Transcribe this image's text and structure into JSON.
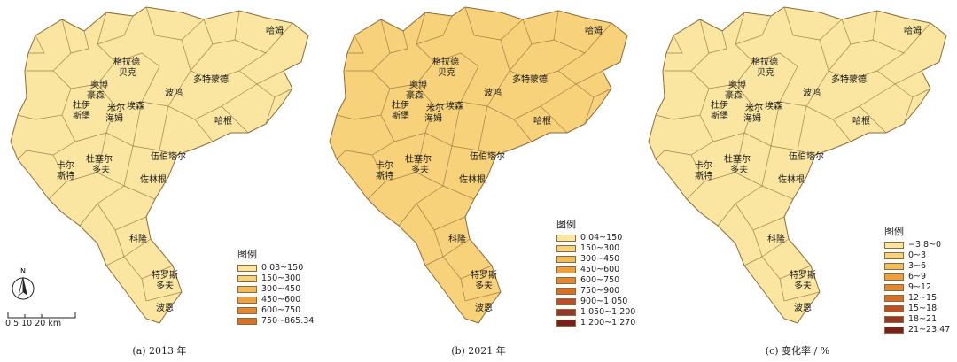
{
  "panels": [
    {
      "caption": "(a)  2013 年",
      "legend_title": "图例",
      "legend_items": [
        "0.03~150",
        "150~300",
        "300~450",
        "450~600",
        "600~750",
        "750~865.34"
      ],
      "legend_colors": [
        "#fbe6a1",
        "#f7d27a",
        "#f3bc59",
        "#ee9f3e",
        "#e38731",
        "#d87028"
      ]
    },
    {
      "caption": "(b)  2021 年",
      "legend_title": "图例",
      "legend_items": [
        "0.04~150",
        "150~300",
        "300~450",
        "450~600",
        "600~750",
        "750~900",
        "900~1 050",
        "1 050~1 200",
        "1 200~1 270"
      ],
      "legend_colors": [
        "#fbe6a1",
        "#f7d27a",
        "#f3bc59",
        "#ee9f3e",
        "#e38731",
        "#d87028",
        "#b9502a",
        "#963727",
        "#7a1f1f"
      ]
    },
    {
      "caption": "(c)  变化率 / %",
      "legend_title": "图例",
      "legend_items": [
        "−3.8~0",
        "0~3",
        "3~6",
        "6~9",
        "9~12",
        "12~15",
        "15~18",
        "18~21",
        "21~23.47"
      ],
      "legend_colors": [
        "#fbe6a1",
        "#f7d27a",
        "#f3bc59",
        "#ee9f3e",
        "#e38731",
        "#d87028",
        "#b9502a",
        "#963727",
        "#7a1f1f"
      ]
    }
  ],
  "cities": {
    "halm": "哈姆",
    "gladbeck_1": "格拉德",
    "gladbeck_2": "贝克",
    "duesseldorf_top": "多特蒙德",
    "oberhausen_1": "奥博",
    "oberhausen_2": "豪森",
    "bochum": "波鸿",
    "essen": "埃森",
    "duisburg_1": "杜伊",
    "duisburg_2": "斯堡",
    "muelheim_1": "米尔",
    "muelheim_2": "海姆",
    "hamm_mid": "哈根",
    "wuppertal": "伍伯塔尔",
    "krefeld_1": "卡尔",
    "krefeld_2": "斯特",
    "duesseldorf_1": "杜塞尔",
    "duesseldorf_2": "多夫",
    "solingen": "佐林根",
    "koeln": "科隆",
    "troisdorf_1": "特罗斯",
    "troisdorf_2": "多夫",
    "bonn": "波恩"
  },
  "north_label": "N",
  "scale_label": "0  5  10  20 km"
}
